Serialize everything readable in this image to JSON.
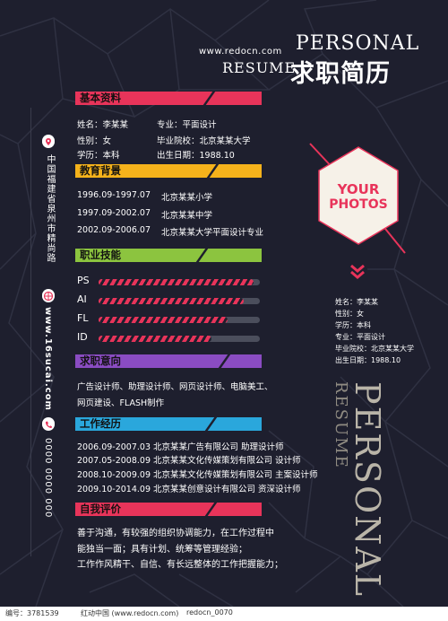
{
  "header": {
    "url": "www.redocn.com",
    "personal": "PERSONAL",
    "resume": "RESUME",
    "title_cn": "求职简历"
  },
  "sections": {
    "basic": "基本资料",
    "education": "教育背景",
    "skills": "职业技能",
    "intent": "求职意向",
    "experience": "工作经历",
    "self_eval": "自我评价"
  },
  "basic_info": {
    "name": "姓名：李某某",
    "major": "专业：平面设计",
    "gender": "性别：女",
    "school": "毕业院校：北京某某大学",
    "degree": "学历：本科",
    "birth": "出生日期：1988.10"
  },
  "education": [
    {
      "period": "1996.09-1997.07",
      "school": "北京某某小学"
    },
    {
      "period": "1997.09-2002.07",
      "school": "北京某某中学"
    },
    {
      "period": "2002.09-2006.07",
      "school": "北京某某大学平面设计专业"
    }
  ],
  "skills": [
    {
      "name": "PS",
      "level": 0.96
    },
    {
      "name": "AI",
      "level": 0.9
    },
    {
      "name": "FL",
      "level": 0.8
    },
    {
      "name": "ID",
      "level": 0.7
    }
  ],
  "intent": {
    "line1": "广告设计师、助理设计师、网页设计师、电脑美工、",
    "line2": "网页建设、FLASH制作"
  },
  "experience": [
    "2006.09-2007.03 北京某某广告有限公司 助理设计师",
    "2007.05-2008.09 北京某某文化传媒策划有限公司 设计师",
    "2008.10-2009.09 北京某某文化传媒策划有限公司 主案设计师",
    "2009.10-2014.09 北京某某创意设计有限公司 资深设计师"
  ],
  "self_eval": {
    "line1": "善于沟通，有较强的组织协调能力，在工作过程中",
    "line2": "能独当一面；具有计划、统筹等管理经验；",
    "line3": "工作作风精干、自信、有长远整体的工作把握能力；"
  },
  "photo": {
    "line1": "YOUR",
    "line2": "PHOTOS"
  },
  "side_info": {
    "name": "姓名：李某某",
    "gender": "性别：女",
    "degree": "学历：本科",
    "major": "专业：平面设计",
    "school": "毕业院校：北京某某大学",
    "birth": "出生日期：1988.10"
  },
  "contact": {
    "address": "中国福建省泉州市精尚路",
    "website": "www.16sucai.com",
    "phone": "0000 0000 000"
  },
  "vertical": {
    "personal": "PERSONAL",
    "resume": "RESUME"
  },
  "footer": {
    "id": "编号：3781539",
    "site": "红动中国 (www.redocn.com)",
    "author": "redocn_0070"
  },
  "colors": {
    "pink": "#e8345a",
    "orange": "#f5b21b",
    "green": "#8cc43f",
    "purple": "#8a4cc2",
    "cyan": "#2aa7dc",
    "background": "#1e1f2e"
  }
}
